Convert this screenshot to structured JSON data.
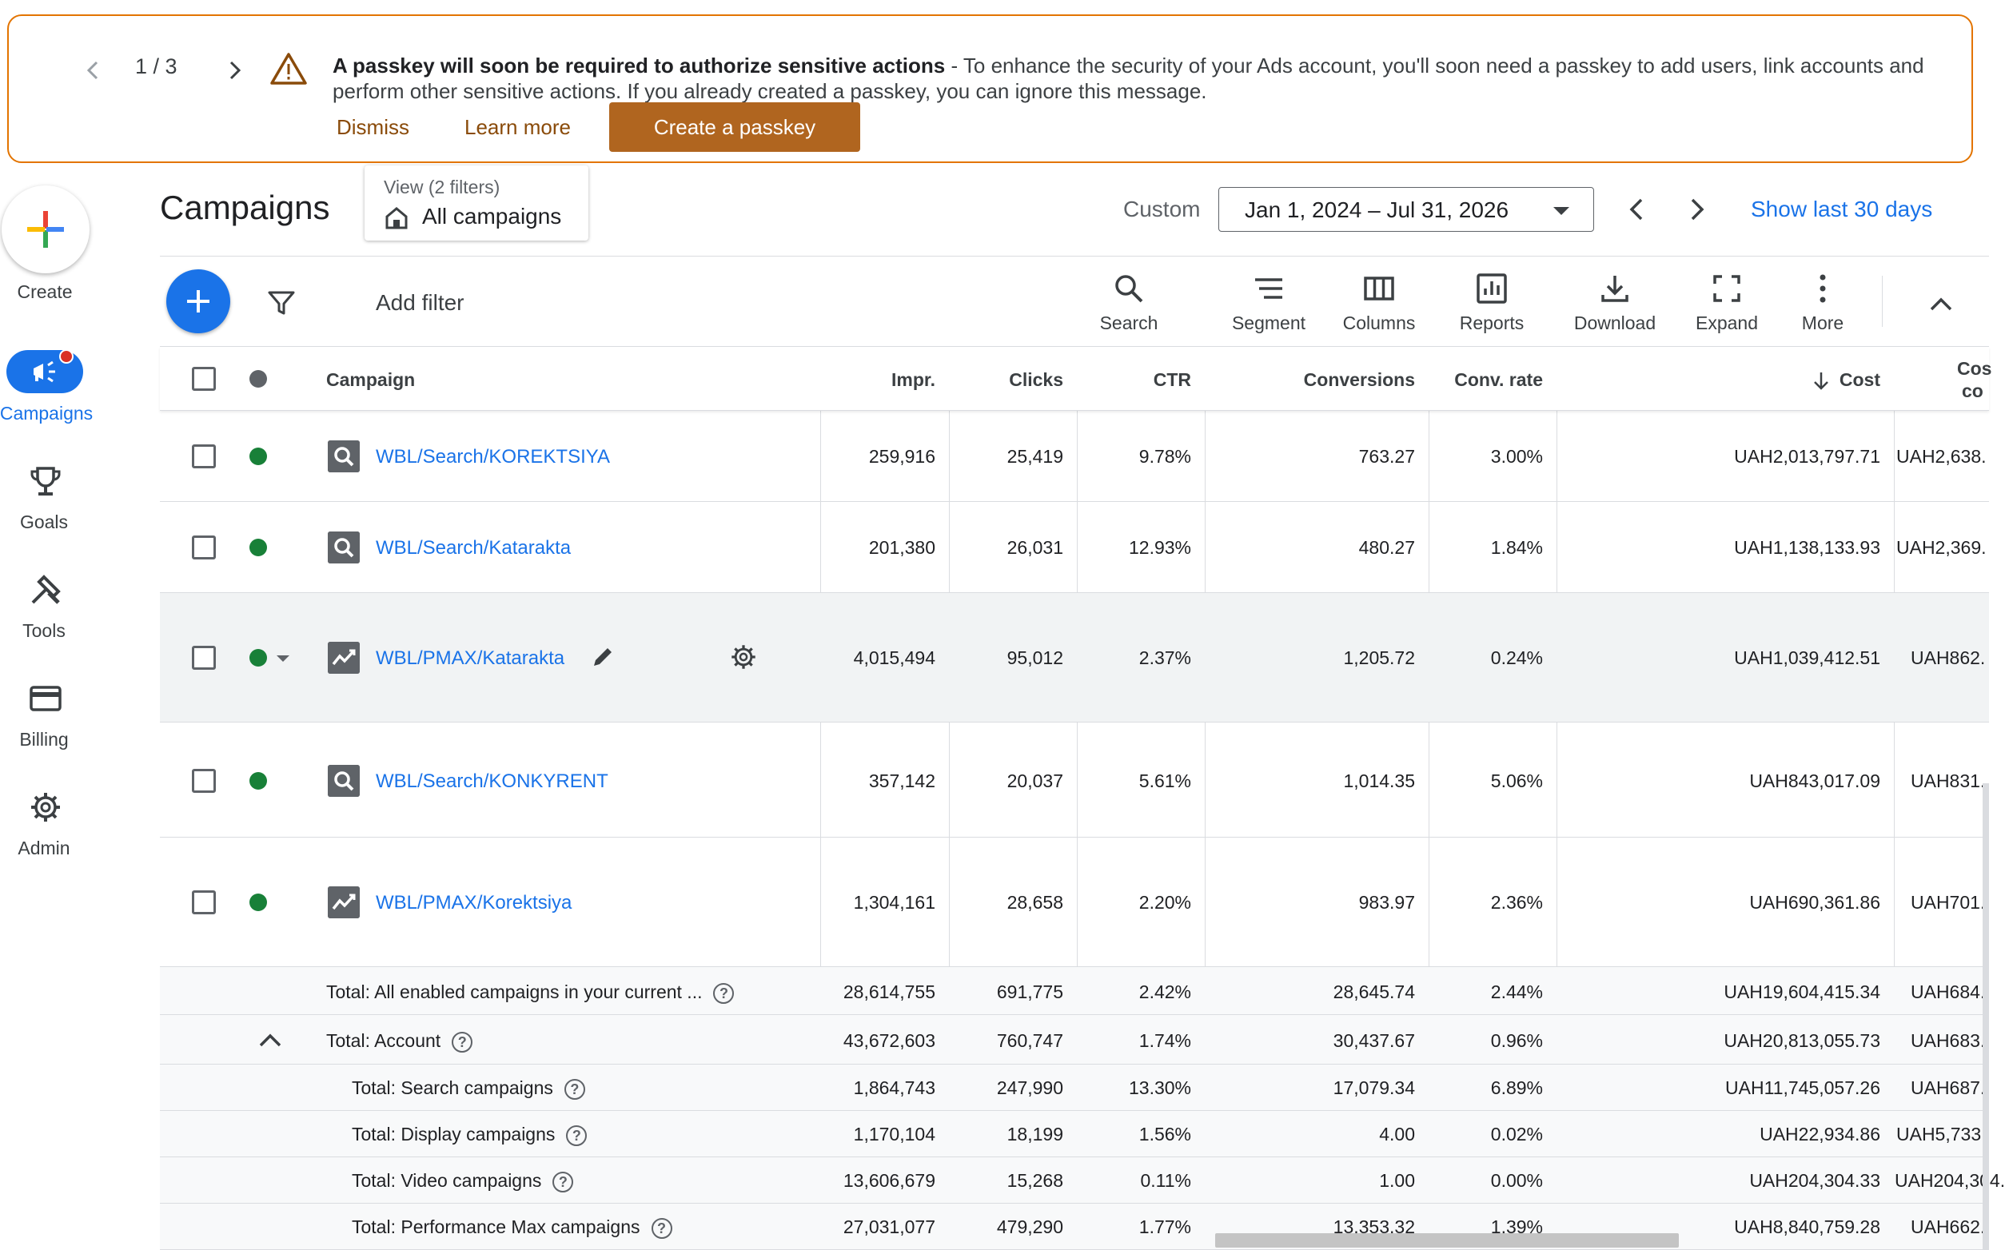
{
  "banner": {
    "pager": "1 / 3",
    "message_bold": "A passkey will soon be required to authorize sensitive actions",
    "message_rest": " - To enhance the security of your Ads account, you'll soon need a passkey to add users, link accounts and perform other sensitive actions. If you already created a passkey, you can ignore this message.",
    "dismiss": "Dismiss",
    "learn_more": "Learn more",
    "create_passkey": "Create a passkey"
  },
  "rail": {
    "create": "Create",
    "campaigns": "Campaigns",
    "goals": "Goals",
    "tools": "Tools",
    "billing": "Billing",
    "admin": "Admin"
  },
  "header": {
    "title": "Campaigns",
    "view_label": "View (2 filters)",
    "view_value": "All campaigns",
    "custom": "Custom",
    "date_range": "Jan 1, 2024 – Jul 31, 2026",
    "show_last": "Show last 30 days"
  },
  "toolbar": {
    "add_filter": "Add filter",
    "search": "Search",
    "segment": "Segment",
    "columns": "Columns",
    "reports": "Reports",
    "download": "Download",
    "expand": "Expand",
    "more": "More"
  },
  "table": {
    "headers": {
      "campaign": "Campaign",
      "impr": "Impr.",
      "clicks": "Clicks",
      "ctr": "CTR",
      "conversions": "Conversions",
      "conv_rate": "Conv. rate",
      "cost": "Cost",
      "cost_conv_1": "Cos",
      "cost_conv_2": "co"
    },
    "rows": [
      {
        "name": "WBL/Search/KOREKTSIYA",
        "impr": "259,916",
        "clicks": "25,419",
        "ctr": "9.78%",
        "conv": "763.27",
        "rate": "3.00%",
        "cost": "UAH2,013,797.71",
        "cpc": "UAH2,638."
      },
      {
        "name": "WBL/Search/Katarakta",
        "impr": "201,380",
        "clicks": "26,031",
        "ctr": "12.93%",
        "conv": "480.27",
        "rate": "1.84%",
        "cost": "UAH1,138,133.93",
        "cpc": "UAH2,369."
      },
      {
        "name": "WBL/PMAX/Katarakta",
        "impr": "4,015,494",
        "clicks": "95,012",
        "ctr": "2.37%",
        "conv": "1,205.72",
        "rate": "0.24%",
        "cost": "UAH1,039,412.51",
        "cpc": "UAH862."
      },
      {
        "name": "WBL/Search/KONKYRENT",
        "impr": "357,142",
        "clicks": "20,037",
        "ctr": "5.61%",
        "conv": "1,014.35",
        "rate": "5.06%",
        "cost": "UAH843,017.09",
        "cpc": "UAH831."
      },
      {
        "name": "WBL/PMAX/Korektsiya",
        "impr": "1,304,161",
        "clicks": "28,658",
        "ctr": "2.20%",
        "conv": "983.97",
        "rate": "2.36%",
        "cost": "UAH690,361.86",
        "cpc": "UAH701."
      }
    ],
    "totals": [
      {
        "label": "Total: All enabled campaigns in your current ...",
        "impr": "28,614,755",
        "clicks": "691,775",
        "ctr": "2.42%",
        "conv": "28,645.74",
        "rate": "2.44%",
        "cost": "UAH19,604,415.34",
        "cpc": "UAH684."
      },
      {
        "label": "Total: Account",
        "impr": "43,672,603",
        "clicks": "760,747",
        "ctr": "1.74%",
        "conv": "30,437.67",
        "rate": "0.96%",
        "cost": "UAH20,813,055.73",
        "cpc": "UAH683."
      },
      {
        "label": "Total: Search campaigns",
        "impr": "1,864,743",
        "clicks": "247,990",
        "ctr": "13.30%",
        "conv": "17,079.34",
        "rate": "6.89%",
        "cost": "UAH11,745,057.26",
        "cpc": "UAH687."
      },
      {
        "label": "Total: Display campaigns",
        "impr": "1,170,104",
        "clicks": "18,199",
        "ctr": "1.56%",
        "conv": "4.00",
        "rate": "0.02%",
        "cost": "UAH22,934.86",
        "cpc": "UAH5,733."
      },
      {
        "label": "Total: Video campaigns",
        "impr": "13,606,679",
        "clicks": "15,268",
        "ctr": "0.11%",
        "conv": "1.00",
        "rate": "0.00%",
        "cost": "UAH204,304.33",
        "cpc": "UAH204,304."
      },
      {
        "label": "Total: Performance Max campaigns",
        "impr": "27,031,077",
        "clicks": "479,290",
        "ctr": "1.77%",
        "conv": "13,353.32",
        "rate": "1.39%",
        "cost": "UAH8,840,759.28",
        "cpc": "UAH662."
      }
    ]
  },
  "colors": {
    "accent": "#1a73e8",
    "warning_border": "#e37400",
    "passkey_button": "#b0651f",
    "enabled_dot": "#188038"
  },
  "icons": [
    "chevron-left-icon",
    "chevron-right-icon",
    "warning-icon",
    "plus-icon",
    "campaigns-icon",
    "trophy-icon",
    "tools-icon",
    "billing-card-icon",
    "gear-icon",
    "home-icon",
    "filter-icon",
    "search-icon",
    "segment-icon",
    "columns-icon",
    "reports-icon",
    "download-icon",
    "expand-icon",
    "more-icon",
    "chevron-up-icon",
    "search-campaign-icon",
    "pmax-campaign-icon",
    "pencil-icon",
    "help-icon"
  ]
}
